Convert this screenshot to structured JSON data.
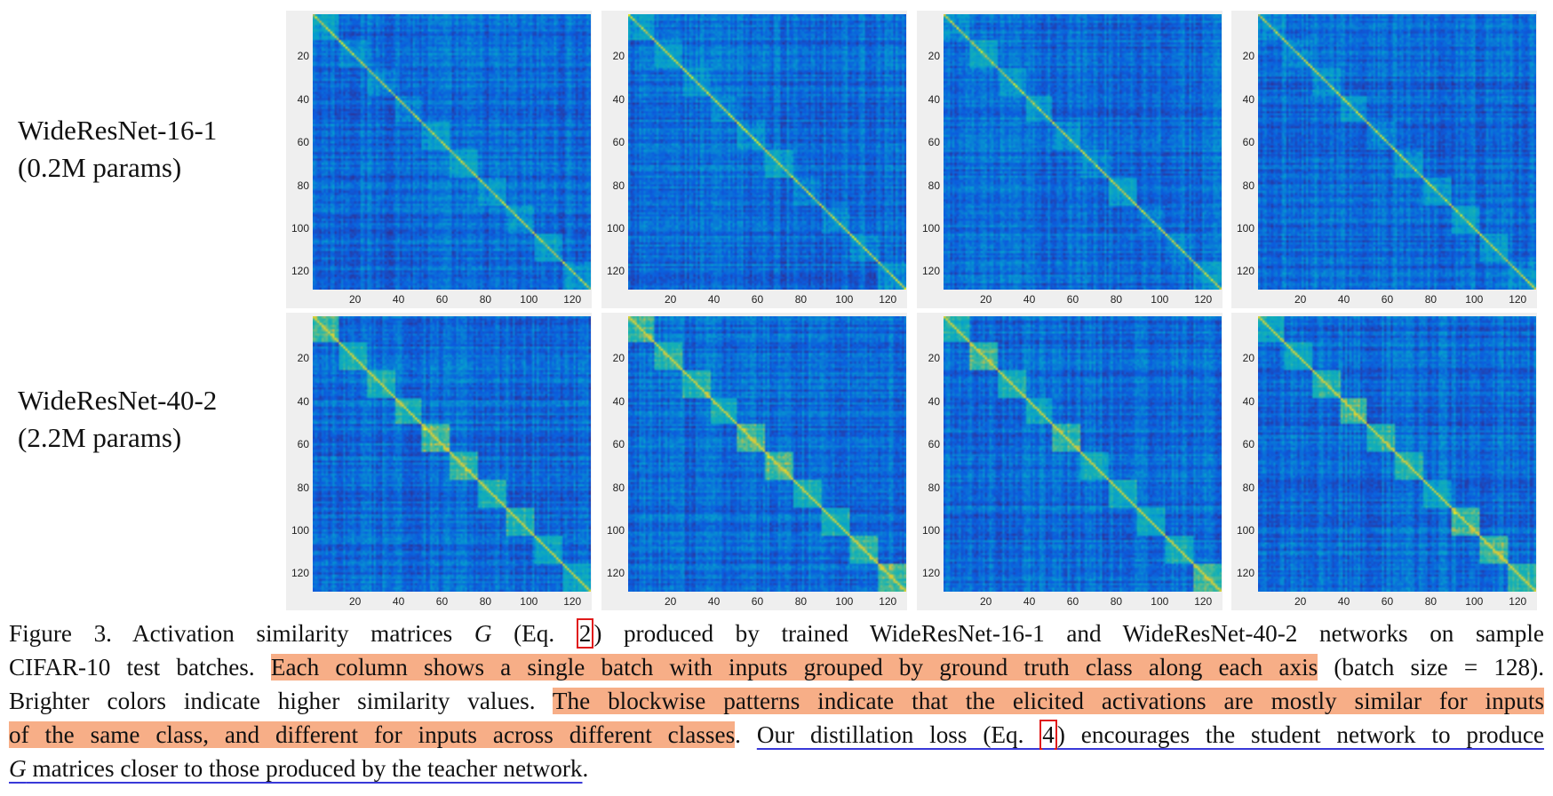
{
  "rows": [
    {
      "name": "WideResNet-16-1",
      "params": "(0.2M params)"
    },
    {
      "name": "WideResNet-40-2",
      "params": "(2.2M params)"
    }
  ],
  "chart_data": {
    "type": "heatmap",
    "title": "",
    "matrix_size": 128,
    "x_ticks": [
      "20",
      "40",
      "60",
      "80",
      "100",
      "120"
    ],
    "y_ticks": [
      "20",
      "40",
      "60",
      "80",
      "100",
      "120"
    ],
    "colormap": "parula",
    "panels": [
      {
        "row": 0,
        "col": 0,
        "class_blocks": [
          [
            0,
            12
          ],
          [
            12,
            25
          ],
          [
            25,
            38
          ],
          [
            38,
            50
          ],
          [
            50,
            63
          ],
          [
            63,
            76
          ],
          [
            76,
            89
          ],
          [
            89,
            102
          ],
          [
            102,
            115
          ],
          [
            115,
            128
          ]
        ]
      },
      {
        "row": 0,
        "col": 1,
        "class_blocks": [
          [
            0,
            12
          ],
          [
            12,
            25
          ],
          [
            25,
            38
          ],
          [
            38,
            50
          ],
          [
            50,
            63
          ],
          [
            63,
            76
          ],
          [
            76,
            89
          ],
          [
            89,
            102
          ],
          [
            102,
            115
          ],
          [
            115,
            128
          ]
        ]
      },
      {
        "row": 0,
        "col": 2,
        "class_blocks": [
          [
            0,
            12
          ],
          [
            12,
            25
          ],
          [
            25,
            38
          ],
          [
            38,
            50
          ],
          [
            50,
            63
          ],
          [
            63,
            76
          ],
          [
            76,
            89
          ],
          [
            89,
            102
          ],
          [
            102,
            115
          ],
          [
            115,
            128
          ]
        ]
      },
      {
        "row": 0,
        "col": 3,
        "class_blocks": [
          [
            0,
            12
          ],
          [
            12,
            25
          ],
          [
            25,
            38
          ],
          [
            38,
            50
          ],
          [
            50,
            63
          ],
          [
            63,
            76
          ],
          [
            76,
            89
          ],
          [
            89,
            102
          ],
          [
            102,
            115
          ],
          [
            115,
            128
          ]
        ]
      },
      {
        "row": 1,
        "col": 0,
        "class_blocks": [
          [
            0,
            12
          ],
          [
            12,
            25
          ],
          [
            25,
            38
          ],
          [
            38,
            50
          ],
          [
            50,
            63
          ],
          [
            63,
            76
          ],
          [
            76,
            89
          ],
          [
            89,
            102
          ],
          [
            102,
            115
          ],
          [
            115,
            128
          ]
        ]
      },
      {
        "row": 1,
        "col": 1,
        "class_blocks": [
          [
            0,
            12
          ],
          [
            12,
            25
          ],
          [
            25,
            38
          ],
          [
            38,
            50
          ],
          [
            50,
            63
          ],
          [
            63,
            76
          ],
          [
            76,
            89
          ],
          [
            89,
            102
          ],
          [
            102,
            115
          ],
          [
            115,
            128
          ]
        ]
      },
      {
        "row": 1,
        "col": 2,
        "class_blocks": [
          [
            0,
            12
          ],
          [
            12,
            25
          ],
          [
            25,
            38
          ],
          [
            38,
            50
          ],
          [
            50,
            63
          ],
          [
            63,
            76
          ],
          [
            76,
            89
          ],
          [
            89,
            102
          ],
          [
            102,
            115
          ],
          [
            115,
            128
          ]
        ]
      },
      {
        "row": 1,
        "col": 3,
        "class_blocks": [
          [
            0,
            12
          ],
          [
            12,
            25
          ],
          [
            25,
            38
          ],
          [
            38,
            50
          ],
          [
            50,
            63
          ],
          [
            63,
            76
          ],
          [
            76,
            89
          ],
          [
            89,
            102
          ],
          [
            102,
            115
          ],
          [
            115,
            128
          ]
        ]
      }
    ]
  },
  "caption": {
    "l1_a": "Figure 3. Activation similarity matrices ",
    "l1_G": "G",
    "l1_b": " (Eq. ",
    "l1_ref": "2",
    "l1_c": ") produced by trained WideResNet-16-1 and WideResNet-40-2 networks on sample",
    "l2_a": "CIFAR-10 test batches. ",
    "l2_hl": "Each column shows a single batch with inputs grouped by ground truth class along each axis",
    "l2_b": " (batch size = 128).",
    "l3_a": "Brighter colors indicate higher similarity values. ",
    "l3_hl": "The blockwise patterns indicate that the elicited activations are mostly similar for inputs",
    "l4_hl": "of the same class, and different for inputs across different classes",
    "l4_a": ". ",
    "l4_ul1": "Our distillation loss (Eq. ",
    "l4_ref": "4",
    "l4_ul2": ") encourages the student network to produce",
    "l5_G": "G",
    "l5_ul": " matrices closer to those produced by the teacher network",
    "l5_end": "."
  }
}
